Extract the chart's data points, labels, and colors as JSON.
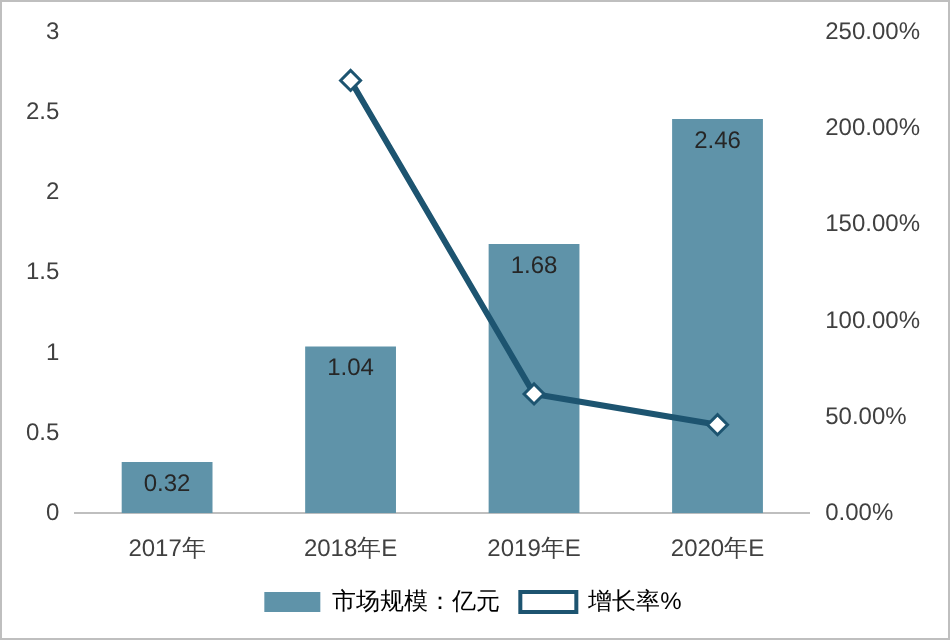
{
  "chart_data": {
    "type": "bar",
    "categories": [
      "2017年",
      "2018年E",
      "2019年E",
      "2020年E"
    ],
    "series": [
      {
        "name": "市场规模：亿元",
        "color": "#5f93a9",
        "values": [
          0.32,
          1.04,
          1.68,
          2.46
        ],
        "value_labels": [
          "0.32",
          "1.04",
          "1.68",
          "2.46"
        ]
      },
      {
        "name": "增长率%",
        "type": "line",
        "axis": "y2",
        "color": "#1d5470",
        "marker": "diamond",
        "values": [
          null,
          225,
          62,
          46
        ]
      }
    ],
    "ylim": [
      0,
      3
    ],
    "yticks": [
      0,
      0.5,
      1,
      1.5,
      2,
      2.5,
      3
    ],
    "y2lim": [
      0,
      250
    ],
    "y2ticks": [
      {
        "value": 0,
        "label": "0.00%"
      },
      {
        "value": 50,
        "label": "50.00%"
      },
      {
        "value": 100,
        "label": "100.00%"
      },
      {
        "value": 150,
        "label": "150.00%"
      },
      {
        "value": 200,
        "label": "200.00%"
      },
      {
        "value": 250,
        "label": "250.00%"
      }
    ],
    "grid": false,
    "legend": "bottom"
  }
}
